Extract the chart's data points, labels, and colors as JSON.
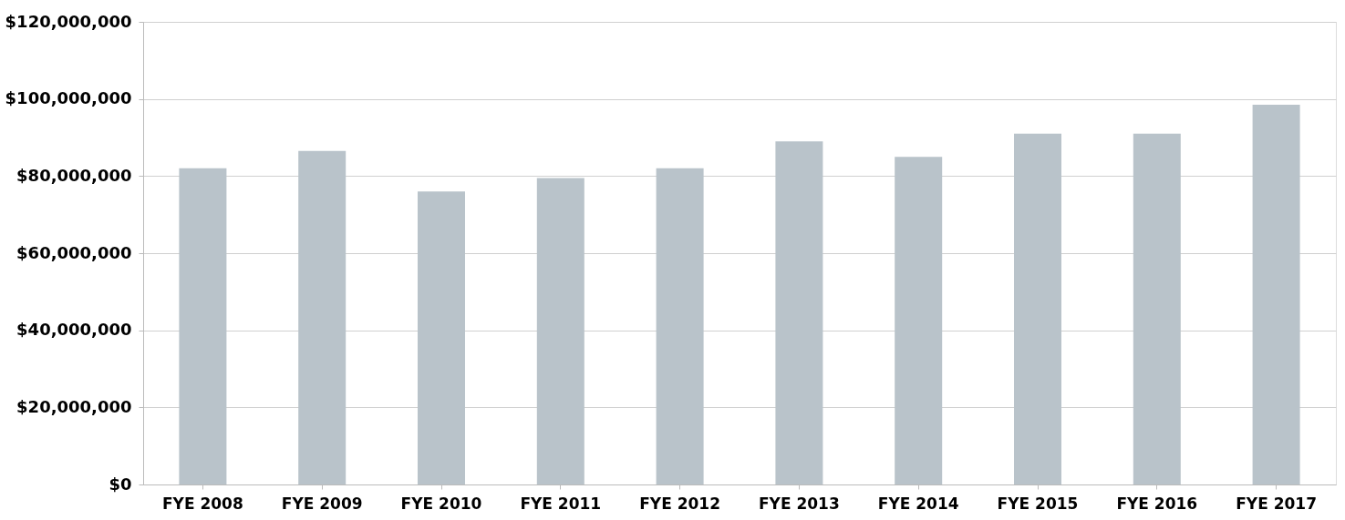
{
  "chart_data": {
    "type": "bar",
    "categories": [
      "FYE 2008",
      "FYE 2009",
      "FYE 2010",
      "FYE 2011",
      "FYE 2012",
      "FYE 2013",
      "FYE 2014",
      "FYE 2015",
      "FYE 2016",
      "FYE 2017"
    ],
    "values": [
      82000000,
      86500000,
      76000000,
      79500000,
      82000000,
      89000000,
      85000000,
      91000000,
      91000000,
      98500000
    ],
    "color": "#b9c3ca",
    "ylim": [
      0,
      120000000
    ],
    "yticks": [
      {
        "value": 0,
        "label": "$0"
      },
      {
        "value": 20000000,
        "label": "$20,000,000"
      },
      {
        "value": 40000000,
        "label": "$40,000,000"
      },
      {
        "value": 60000000,
        "label": "$60,000,000"
      },
      {
        "value": 80000000,
        "label": "$80,000,000"
      },
      {
        "value": 100000000,
        "label": "$100,000,000"
      },
      {
        "value": 120000000,
        "label": "$120,000,000"
      }
    ],
    "grid": "y"
  }
}
